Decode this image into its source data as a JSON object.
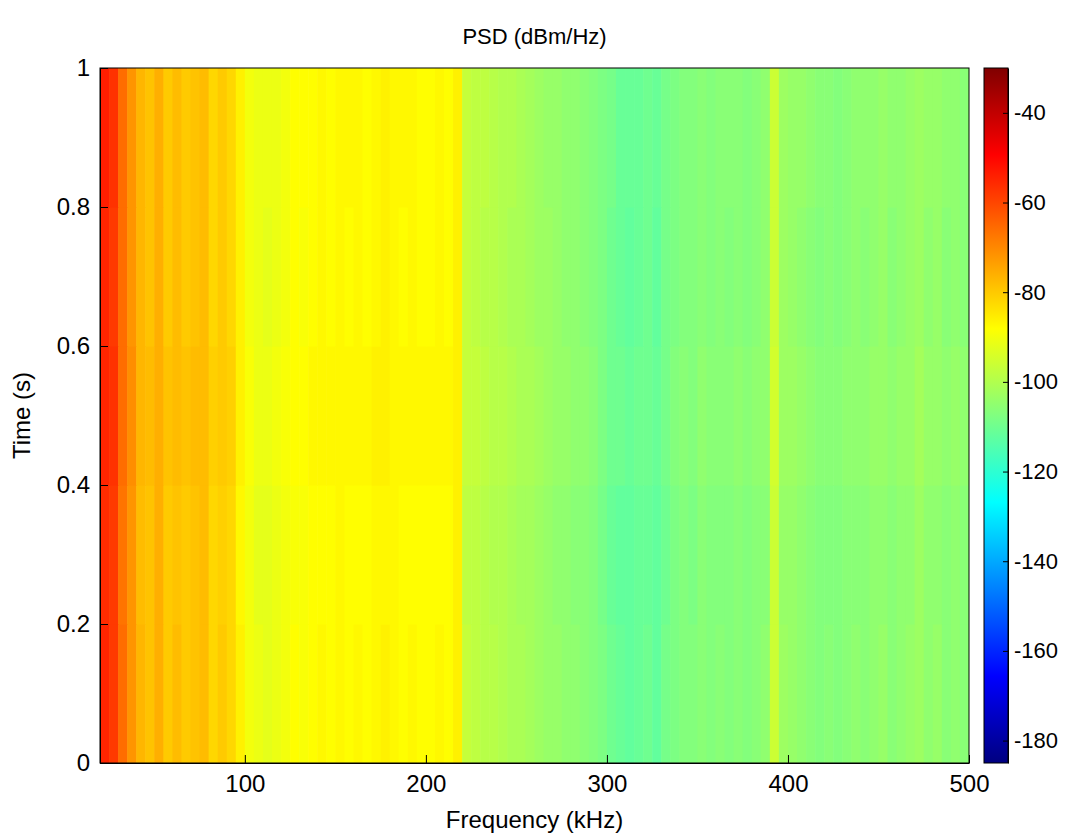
{
  "chart_data": {
    "type": "heatmap",
    "title": "PSD (dBm/Hz)",
    "xlabel": "Frequency (kHz)",
    "ylabel": "Time (s)",
    "xlim": [
      20,
      500
    ],
    "xticks": [
      100,
      200,
      300,
      400,
      500
    ],
    "ylim": [
      0,
      1
    ],
    "yticks": [
      0,
      0.2,
      0.4,
      0.6,
      0.8,
      1
    ],
    "clim": [
      -185,
      -30
    ],
    "cticks": [
      -40,
      -60,
      -80,
      -100,
      -120,
      -140,
      -160,
      -180
    ],
    "xbins": [
      20,
      25,
      30,
      35,
      40,
      45,
      50,
      55,
      60,
      65,
      70,
      75,
      80,
      85,
      90,
      95,
      100,
      105,
      110,
      115,
      120,
      125,
      130,
      135,
      140,
      145,
      150,
      155,
      160,
      165,
      170,
      175,
      180,
      185,
      190,
      195,
      200,
      205,
      210,
      215,
      220,
      225,
      230,
      235,
      240,
      245,
      250,
      255,
      260,
      265,
      270,
      275,
      280,
      285,
      290,
      295,
      300,
      305,
      310,
      315,
      320,
      325,
      330,
      335,
      340,
      345,
      350,
      355,
      360,
      365,
      370,
      375,
      380,
      385,
      390,
      395,
      400,
      405,
      410,
      415,
      420,
      425,
      430,
      435,
      440,
      445,
      450,
      455,
      460,
      465,
      470,
      475,
      480,
      485,
      490,
      495,
      500
    ],
    "ybins": [
      0,
      0.2,
      0.4,
      0.6,
      0.8,
      1
    ],
    "cells": [
      [
        -55,
        -58,
        -66,
        -72,
        -77,
        -79,
        -76,
        -80,
        -78,
        -80,
        -79,
        -78,
        -82,
        -80,
        -82,
        -86,
        -90,
        -91,
        -92,
        -91,
        -90,
        -88,
        -89,
        -88,
        -87,
        -88,
        -87,
        -88,
        -87,
        -88,
        -87,
        -86,
        -87,
        -88,
        -87,
        -88,
        -88,
        -87,
        -88,
        -86,
        -97,
        -98,
        -99,
        -99,
        -100,
        -101,
        -101,
        -102,
        -103,
        -104,
        -104,
        -105,
        -105,
        -106,
        -107,
        -108,
        -110,
        -111,
        -112,
        -111,
        -110,
        -112,
        -109,
        -108,
        -107,
        -107,
        -106,
        -107,
        -106,
        -107,
        -106,
        -107,
        -106,
        -105,
        -96,
        -103,
        -104,
        -105,
        -106,
        -107,
        -106,
        -107,
        -106,
        -105,
        -106,
        -105,
        -104,
        -106,
        -105,
        -104,
        -103,
        -105,
        -104,
        -106,
        -105,
        -106
      ],
      [
        -56,
        -58,
        -67,
        -72,
        -78,
        -79,
        -76,
        -80,
        -79,
        -80,
        -79,
        -78,
        -82,
        -81,
        -82,
        -87,
        -90,
        -92,
        -92,
        -91,
        -90,
        -89,
        -89,
        -88,
        -88,
        -88,
        -87,
        -88,
        -88,
        -88,
        -87,
        -87,
        -87,
        -88,
        -88,
        -88,
        -88,
        -88,
        -88,
        -86,
        -98,
        -98,
        -99,
        -100,
        -100,
        -101,
        -102,
        -102,
        -103,
        -104,
        -105,
        -105,
        -106,
        -106,
        -107,
        -109,
        -111,
        -112,
        -112,
        -111,
        -111,
        -112,
        -110,
        -108,
        -107,
        -108,
        -106,
        -107,
        -107,
        -107,
        -106,
        -107,
        -106,
        -106,
        -96,
        -104,
        -104,
        -105,
        -106,
        -107,
        -107,
        -107,
        -106,
        -106,
        -106,
        -105,
        -105,
        -106,
        -105,
        -105,
        -103,
        -105,
        -105,
        -106,
        -105,
        -106
      ],
      [
        -55,
        -57,
        -66,
        -71,
        -77,
        -78,
        -76,
        -79,
        -78,
        -79,
        -78,
        -78,
        -81,
        -80,
        -81,
        -86,
        -89,
        -91,
        -91,
        -90,
        -89,
        -88,
        -88,
        -87,
        -87,
        -87,
        -87,
        -87,
        -87,
        -87,
        -86,
        -86,
        -87,
        -87,
        -87,
        -87,
        -87,
        -87,
        -87,
        -86,
        -97,
        -97,
        -98,
        -99,
        -99,
        -100,
        -101,
        -101,
        -102,
        -103,
        -104,
        -104,
        -105,
        -105,
        -106,
        -108,
        -110,
        -110,
        -111,
        -110,
        -110,
        -111,
        -109,
        -107,
        -106,
        -107,
        -105,
        -106,
        -106,
        -106,
        -105,
        -106,
        -105,
        -105,
        -95,
        -103,
        -103,
        -104,
        -105,
        -106,
        -106,
        -106,
        -105,
        -105,
        -105,
        -104,
        -104,
        -105,
        -104,
        -104,
        -102,
        -104,
        -104,
        -105,
        -104,
        -105
      ],
      [
        -55,
        -58,
        -66,
        -72,
        -77,
        -79,
        -76,
        -80,
        -78,
        -80,
        -79,
        -78,
        -82,
        -80,
        -82,
        -86,
        -90,
        -91,
        -92,
        -91,
        -90,
        -88,
        -89,
        -88,
        -87,
        -88,
        -87,
        -88,
        -87,
        -88,
        -87,
        -86,
        -87,
        -88,
        -87,
        -88,
        -88,
        -87,
        -88,
        -86,
        -97,
        -98,
        -99,
        -99,
        -100,
        -101,
        -101,
        -102,
        -103,
        -103,
        -104,
        -105,
        -105,
        -106,
        -107,
        -108,
        -110,
        -111,
        -112,
        -111,
        -110,
        -112,
        -109,
        -108,
        -107,
        -107,
        -106,
        -107,
        -106,
        -107,
        -106,
        -107,
        -106,
        -105,
        -96,
        -103,
        -104,
        -105,
        -106,
        -107,
        -106,
        -107,
        -106,
        -105,
        -106,
        -105,
        -104,
        -106,
        -105,
        -104,
        -103,
        -105,
        -104,
        -106,
        -105,
        -106
      ],
      [
        -54,
        -57,
        -66,
        -72,
        -77,
        -79,
        -76,
        -80,
        -78,
        -80,
        -79,
        -78,
        -82,
        -80,
        -82,
        -86,
        -90,
        -91,
        -91,
        -91,
        -90,
        -88,
        -88,
        -88,
        -87,
        -88,
        -87,
        -87,
        -87,
        -88,
        -87,
        -86,
        -87,
        -87,
        -87,
        -88,
        -88,
        -87,
        -88,
        -86,
        -97,
        -98,
        -98,
        -99,
        -100,
        -100,
        -101,
        -102,
        -103,
        -104,
        -104,
        -105,
        -105,
        -106,
        -107,
        -108,
        -109,
        -111,
        -111,
        -111,
        -110,
        -111,
        -109,
        -108,
        -107,
        -107,
        -106,
        -107,
        -106,
        -106,
        -106,
        -107,
        -106,
        -105,
        -96,
        -103,
        -104,
        -104,
        -105,
        -106,
        -106,
        -107,
        -106,
        -105,
        -105,
        -105,
        -104,
        -105,
        -105,
        -104,
        -103,
        -104,
        -104,
        -105,
        -105,
        -106
      ]
    ]
  }
}
